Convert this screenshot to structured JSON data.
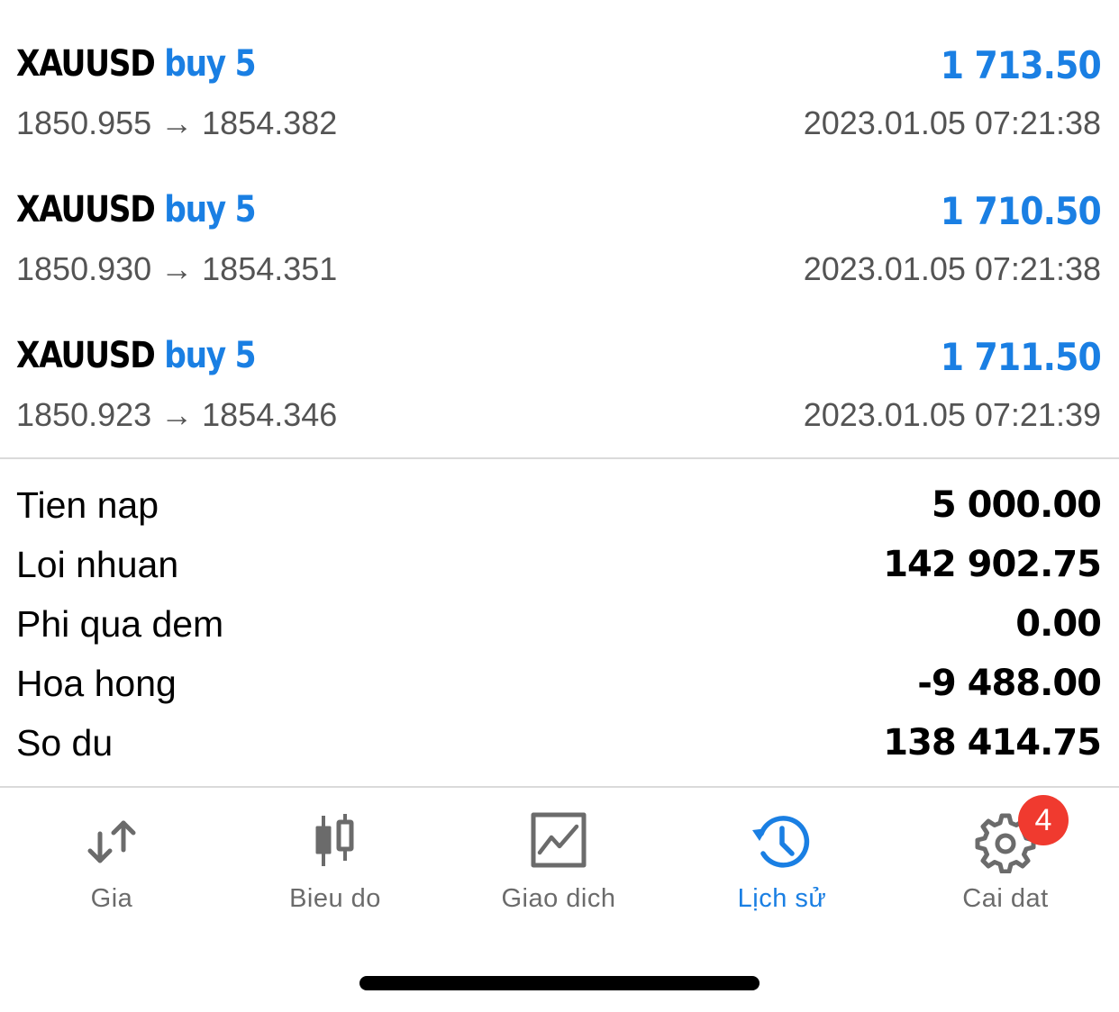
{
  "deals": [
    {
      "symbol": "XAUUSD",
      "side": "buy 5",
      "profit": "1 713.50",
      "prices": "1850.955 → 1854.382",
      "time": "2023.01.05 07:21:38"
    },
    {
      "symbol": "XAUUSD",
      "side": "buy 5",
      "profit": "1 710.50",
      "prices": "1850.930 → 1854.351",
      "time": "2023.01.05 07:21:38"
    },
    {
      "symbol": "XAUUSD",
      "side": "buy 5",
      "profit": "1 711.50",
      "prices": "1850.923 → 1854.346",
      "time": "2023.01.05 07:21:39"
    }
  ],
  "summary": [
    {
      "label": "Tien nap",
      "value": "5 000.00"
    },
    {
      "label": "Loi nhuan",
      "value": "142 902.75"
    },
    {
      "label": "Phi qua dem",
      "value": "0.00"
    },
    {
      "label": "Hoa hong",
      "value": "-9 488.00"
    },
    {
      "label": "So du",
      "value": "138 414.75"
    }
  ],
  "tabs": [
    {
      "label": "Gia",
      "icon": "quotes-arrows-icon",
      "active": false
    },
    {
      "label": "Bieu do",
      "icon": "candlestick-chart-icon",
      "active": false
    },
    {
      "label": "Giao dich",
      "icon": "trade-chart-icon",
      "active": false
    },
    {
      "label": "Lịch sử",
      "icon": "history-clock-icon",
      "active": true
    },
    {
      "label": "Cai dat",
      "icon": "gear-icon",
      "active": false,
      "badge": "4"
    }
  ],
  "colors": {
    "accent": "#1a7fe3",
    "badge": "#f03a2f",
    "muted_text": "#545454",
    "tab_inactive": "#6b6b6b"
  }
}
